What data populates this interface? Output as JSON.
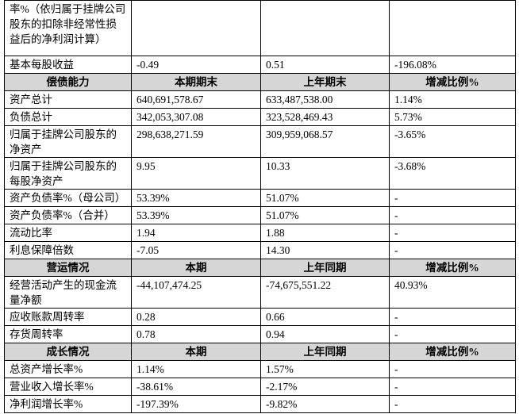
{
  "table": {
    "groups": [
      {
        "rows": [
          [
            "率%（依归属于挂牌公司股东的扣除非经常性损益后的净利润计算）"
          ],
          [
            "基本每股收益",
            "-0.49",
            "0.51",
            "-196.08%"
          ]
        ]
      },
      {
        "header": [
          "偿债能力",
          "本期期末",
          "上年期末",
          "增减比例%"
        ],
        "rows": [
          [
            "资产总计",
            "640,691,578.67",
            "633,487,538.00",
            "1.14%"
          ],
          [
            "负债总计",
            "342,053,307.08",
            "323,528,469.43",
            "5.73%"
          ],
          [
            "归属于挂牌公司股东的净资产",
            "298,638,271.59",
            "309,959,068.57",
            "-3.65%"
          ],
          [
            "归属于挂牌公司股东的每股净资产",
            "9.95",
            "10.33",
            "-3.68%"
          ],
          [
            "资产负债率%（母公司）",
            "53.39%",
            "51.07%",
            "-"
          ],
          [
            "资产负债率%（合并）",
            "53.39%",
            "51.07%",
            "-"
          ],
          [
            "流动比率",
            "1.94",
            "1.88",
            "-"
          ],
          [
            "利息保障倍数",
            "-7.05",
            "14.30",
            "-"
          ]
        ]
      },
      {
        "header": [
          "营运情况",
          "本期",
          "上年同期",
          "增减比例%"
        ],
        "rows": [
          [
            "经营活动产生的现金流量净额",
            "-44,107,474.25",
            "-74,675,551.22",
            "40.93%"
          ],
          [
            "应收账款周转率",
            "0.28",
            "0.66",
            "-"
          ],
          [
            "存货周转率",
            "0.78",
            "0.94",
            "-"
          ]
        ]
      },
      {
        "header": [
          "成长情况",
          "本期",
          "上年同期",
          "增减比例%"
        ],
        "rows": [
          [
            "总资产增长率%",
            "1.14%",
            "1.57%",
            "-"
          ],
          [
            "营业收入增长率%",
            "-38.61%",
            "-2.17%",
            "-"
          ],
          [
            "净利润增长率%",
            "-197.39%",
            "-9.82%",
            "-"
          ]
        ]
      }
    ]
  }
}
